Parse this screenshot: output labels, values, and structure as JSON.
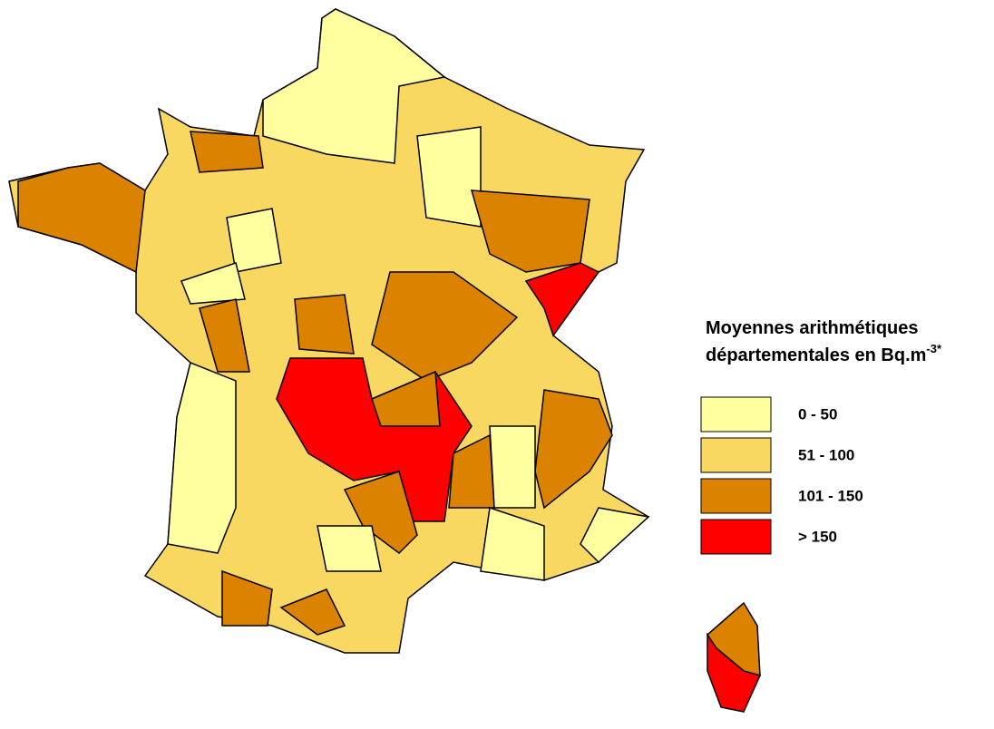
{
  "legend": {
    "title_lines": [
      "Moyennes arithmétiques",
      "départementales en Bq.m"
    ],
    "title_superscript": "-3*",
    "items": [
      {
        "label": "0 - 50",
        "color": "#ffffa0"
      },
      {
        "label": "51 - 100",
        "color": "#f8d860"
      },
      {
        "label": "101 - 150",
        "color": "#db8200"
      },
      {
        "label": "> 150",
        "color": "#ff0000"
      }
    ]
  }
}
